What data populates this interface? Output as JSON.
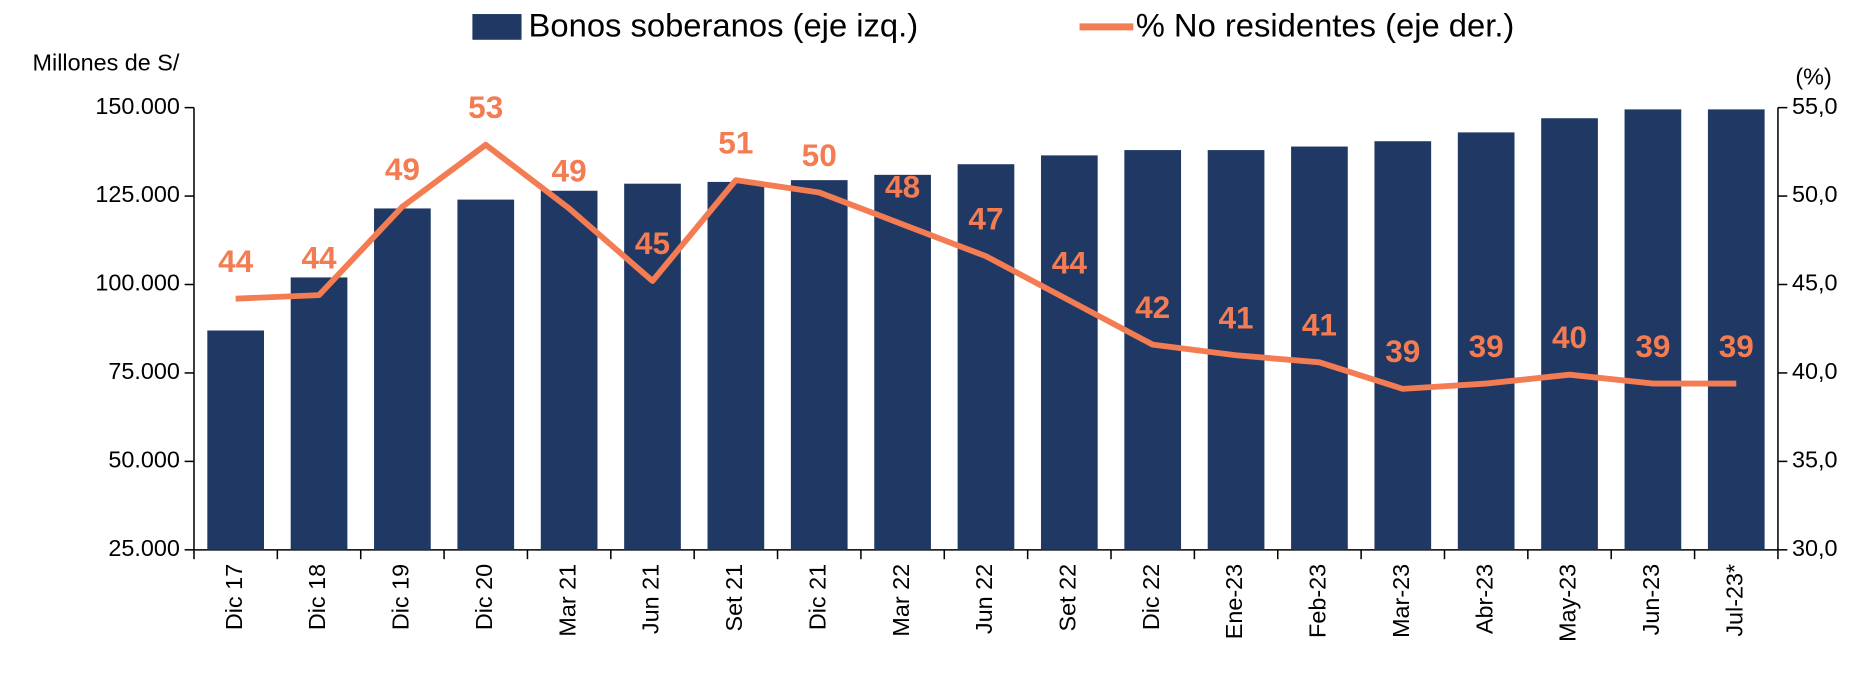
{
  "chart_data": {
    "type": "bar",
    "y_label": "Millones de S/",
    "y2_label": "(%)",
    "categories": [
      "Dic 17",
      "Dic 18",
      "Dic 19",
      "Dic 20",
      "Mar 21",
      "Jun 21",
      "Set 21",
      "Dic 21",
      "Mar 22",
      "Jun 22",
      "Set 22",
      "Dic 22",
      "Ene-23",
      "Feb-23",
      "Mar-23",
      "Abr-23",
      "May-23",
      "Jun-23",
      "Jul-23*"
    ],
    "series": [
      {
        "name": "Bonos soberanos (eje izq.)",
        "type": "bar",
        "color": "#1f3864",
        "values": [
          87000,
          102000,
          121500,
          124000,
          126500,
          128500,
          129000,
          129500,
          131000,
          134000,
          136500,
          138000,
          138000,
          139000,
          140500,
          143000,
          147000,
          149500,
          149500
        ]
      },
      {
        "name": "% No residentes (eje der.)",
        "type": "line",
        "axis": "y2",
        "color": "#f47c52",
        "values": [
          44.2,
          44.4,
          49.4,
          52.9,
          49.3,
          45.2,
          50.9,
          50.2,
          48.4,
          46.6,
          44.1,
          41.6,
          41.0,
          40.6,
          39.1,
          39.4,
          39.9,
          39.4,
          39.4
        ],
        "value_labels": [
          "44",
          "44",
          "49",
          "53",
          "49",
          "45",
          "51",
          "50",
          "48",
          "47",
          "44",
          "42",
          "41",
          "41",
          "39",
          "39",
          "40",
          "39",
          "39"
        ]
      }
    ],
    "ylim": [
      25000,
      150000
    ],
    "yticks": [
      {
        "value": 25000,
        "label": "25.000"
      },
      {
        "value": 50000,
        "label": "50.000"
      },
      {
        "value": 75000,
        "label": "75.000"
      },
      {
        "value": 100000,
        "label": "100.000"
      },
      {
        "value": 125000,
        "label": "125.000"
      },
      {
        "value": 150000,
        "label": "150.000"
      }
    ],
    "y2lim": [
      30,
      55
    ],
    "y2ticks": [
      {
        "value": 30,
        "label": "30,0"
      },
      {
        "value": 35,
        "label": "35,0"
      },
      {
        "value": 40,
        "label": "40,0"
      },
      {
        "value": 45,
        "label": "45,0"
      },
      {
        "value": 50,
        "label": "50,0"
      },
      {
        "value": 55,
        "label": "55,0"
      }
    ],
    "grid": false
  }
}
